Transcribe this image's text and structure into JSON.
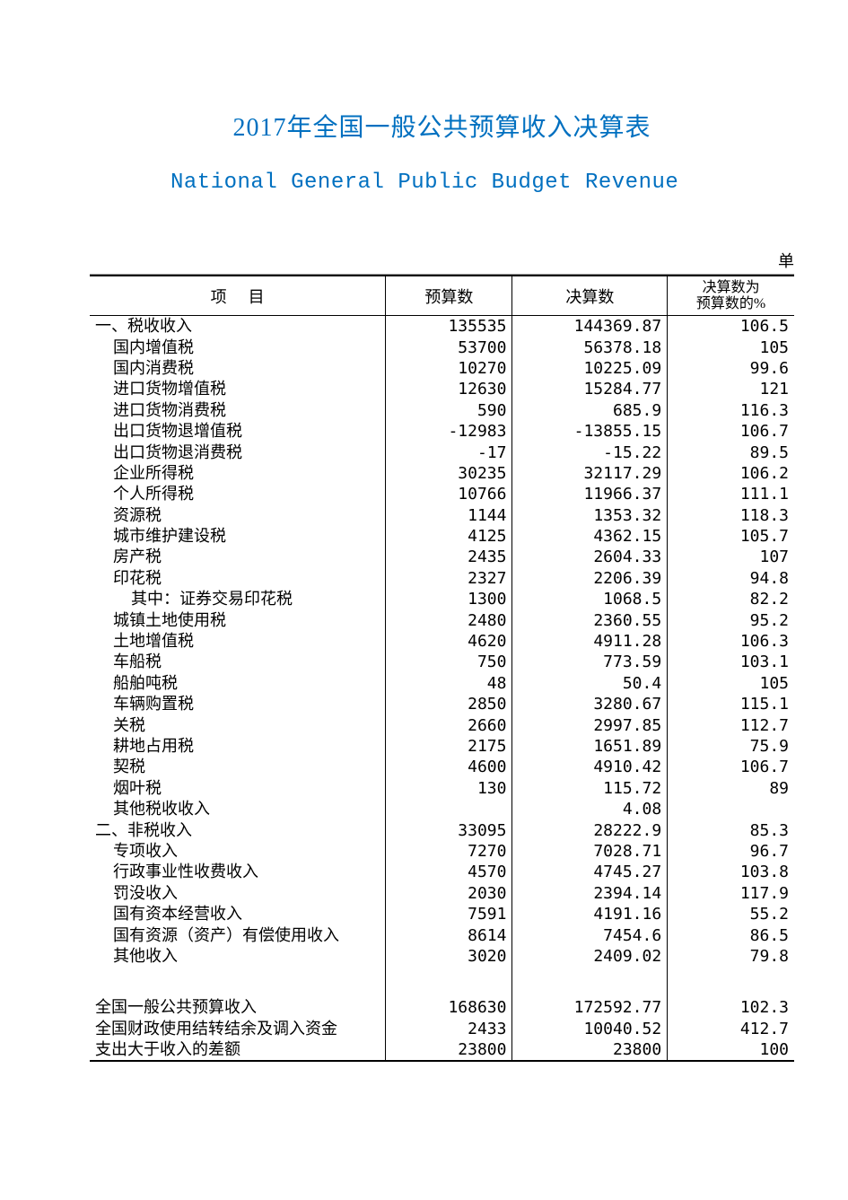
{
  "title_cn": "2017年全国一般公共预算收入决算表",
  "title_en": "National General Public Budget Revenue",
  "unit_label": "单",
  "colors": {
    "title": "#0070c0",
    "text": "#000000",
    "rule": "#000000",
    "topline": "#a0a0a0",
    "background": "#ffffff"
  },
  "header": {
    "item": "项目",
    "budget": "预算数",
    "actual": "决算数",
    "pct_l1": "决算数为",
    "pct_l2": "预算数的%"
  },
  "rows": [
    {
      "indent": 0,
      "label": "一、税收收入",
      "budget": "135535",
      "actual": "144369.87",
      "pct": "106.5"
    },
    {
      "indent": 1,
      "label": "国内增值税",
      "budget": "53700",
      "actual": "56378.18",
      "pct": "105"
    },
    {
      "indent": 1,
      "label": "国内消费税",
      "budget": "10270",
      "actual": "10225.09",
      "pct": "99.6"
    },
    {
      "indent": 1,
      "label": "进口货物增值税",
      "budget": "12630",
      "actual": "15284.77",
      "pct": "121"
    },
    {
      "indent": 1,
      "label": "进口货物消费税",
      "budget": "590",
      "actual": "685.9",
      "pct": "116.3"
    },
    {
      "indent": 1,
      "label": "出口货物退增值税",
      "budget": "-12983",
      "actual": "-13855.15",
      "pct": "106.7"
    },
    {
      "indent": 1,
      "label": "出口货物退消费税",
      "budget": "-17",
      "actual": "-15.22",
      "pct": "89.5"
    },
    {
      "indent": 1,
      "label": "企业所得税",
      "budget": "30235",
      "actual": "32117.29",
      "pct": "106.2"
    },
    {
      "indent": 1,
      "label": "个人所得税",
      "budget": "10766",
      "actual": "11966.37",
      "pct": "111.1"
    },
    {
      "indent": 1,
      "label": "资源税",
      "budget": "1144",
      "actual": "1353.32",
      "pct": "118.3"
    },
    {
      "indent": 1,
      "label": "城市维护建设税",
      "budget": "4125",
      "actual": "4362.15",
      "pct": "105.7"
    },
    {
      "indent": 1,
      "label": "房产税",
      "budget": "2435",
      "actual": "2604.33",
      "pct": "107"
    },
    {
      "indent": 1,
      "label": "印花税",
      "budget": "2327",
      "actual": "2206.39",
      "pct": "94.8"
    },
    {
      "indent": 2,
      "label": "其中：证券交易印花税",
      "budget": "1300",
      "actual": "1068.5",
      "pct": "82.2"
    },
    {
      "indent": 1,
      "label": "城镇土地使用税",
      "budget": "2480",
      "actual": "2360.55",
      "pct": "95.2"
    },
    {
      "indent": 1,
      "label": "土地增值税",
      "budget": "4620",
      "actual": "4911.28",
      "pct": "106.3"
    },
    {
      "indent": 1,
      "label": "车船税",
      "budget": "750",
      "actual": "773.59",
      "pct": "103.1"
    },
    {
      "indent": 1,
      "label": "船舶吨税",
      "budget": "48",
      "actual": "50.4",
      "pct": "105"
    },
    {
      "indent": 1,
      "label": "车辆购置税",
      "budget": "2850",
      "actual": "3280.67",
      "pct": "115.1"
    },
    {
      "indent": 1,
      "label": "关税",
      "budget": "2660",
      "actual": "2997.85",
      "pct": "112.7"
    },
    {
      "indent": 1,
      "label": "耕地占用税",
      "budget": "2175",
      "actual": "1651.89",
      "pct": "75.9"
    },
    {
      "indent": 1,
      "label": "契税",
      "budget": "4600",
      "actual": "4910.42",
      "pct": "106.7"
    },
    {
      "indent": 1,
      "label": "烟叶税",
      "budget": "130",
      "actual": "115.72",
      "pct": "89"
    },
    {
      "indent": 1,
      "label": "其他税收收入",
      "budget": "",
      "actual": "4.08",
      "pct": ""
    },
    {
      "indent": 0,
      "label": "二、非税收入",
      "budget": "33095",
      "actual": "28222.9",
      "pct": "85.3"
    },
    {
      "indent": 1,
      "label": "专项收入",
      "budget": "7270",
      "actual": "7028.71",
      "pct": "96.7"
    },
    {
      "indent": 1,
      "label": "行政事业性收费收入",
      "budget": "4570",
      "actual": "4745.27",
      "pct": "103.8"
    },
    {
      "indent": 1,
      "label": "罚没收入",
      "budget": "2030",
      "actual": "2394.14",
      "pct": "117.9"
    },
    {
      "indent": 1,
      "label": "国有资本经营收入",
      "budget": "7591",
      "actual": "4191.16",
      "pct": "55.2"
    },
    {
      "indent": 1,
      "label": "国有资源（资产）有偿使用收入",
      "budget": "8614",
      "actual": "7454.6",
      "pct": "86.5",
      "wrap": true
    },
    {
      "indent": 1,
      "label": "其他收入",
      "budget": "3020",
      "actual": "2409.02",
      "pct": "79.8"
    }
  ],
  "footer_rows": [
    {
      "indent": 0,
      "label": "全国一般公共预算收入",
      "budget": "168630",
      "actual": "172592.77",
      "pct": "102.3"
    },
    {
      "indent": 0,
      "label": "全国财政使用结转结余及调入资金",
      "budget": "2433",
      "actual": "10040.52",
      "pct": "412.7",
      "wrap": true
    },
    {
      "indent": 0,
      "label": "支出大于收入的差额",
      "budget": "23800",
      "actual": "23800",
      "pct": "100"
    }
  ]
}
